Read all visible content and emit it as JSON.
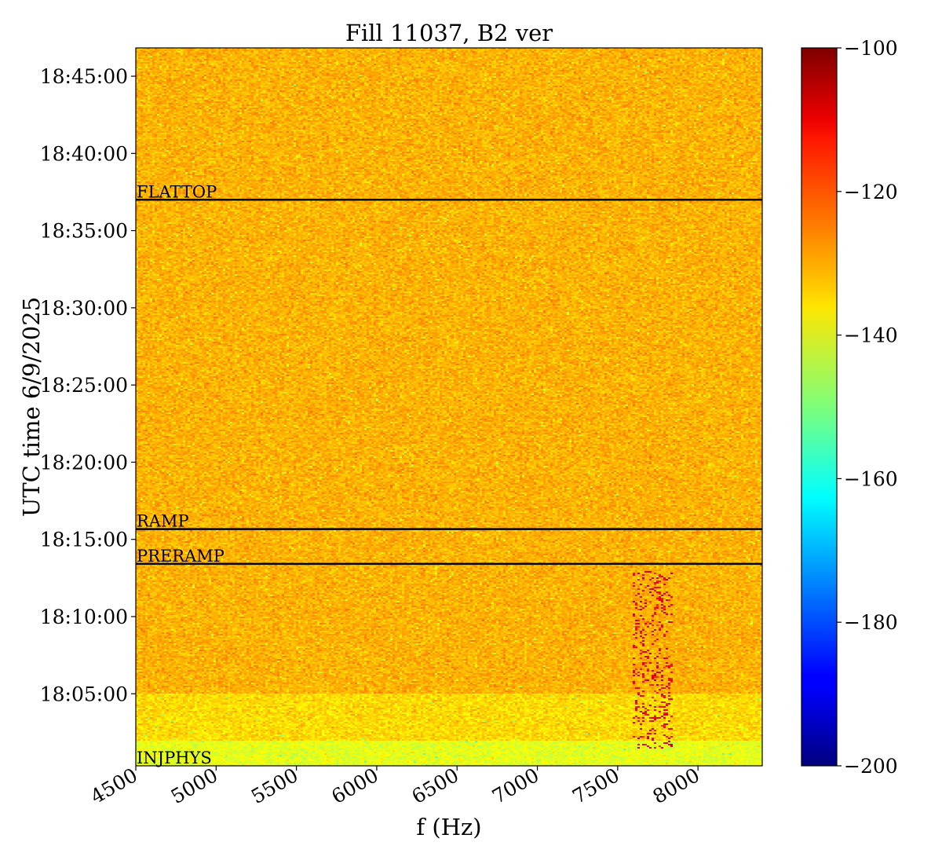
{
  "chart_data": {
    "type": "heatmap",
    "title": "Fill 11037, B2 ver",
    "xlabel": "f (Hz)",
    "ylabel": "UTC time 6/9/2025",
    "xlim": [
      4500,
      8400
    ],
    "x_ticks": [
      4500,
      5000,
      5500,
      6000,
      6500,
      7000,
      7500,
      8000
    ],
    "y_ticks": [
      "18:05:00",
      "18:10:00",
      "18:15:00",
      "18:20:00",
      "18:25:00",
      "18:30:00",
      "18:35:00",
      "18:40:00",
      "18:45:00"
    ],
    "ylim": [
      "18:00:20",
      "18:46:50"
    ],
    "colormap": "jet",
    "colorbar": {
      "min": -200,
      "max": -100,
      "ticks": [
        -100,
        -120,
        -140,
        -160,
        -180,
        -200
      ],
      "tick_labels": [
        "−100",
        "−120",
        "−140",
        "−160",
        "−180",
        "−200"
      ]
    },
    "typical_level": -130,
    "early_low_level": -140,
    "hotspot": {
      "freq_range": [
        7600,
        7850
      ],
      "time_range": [
        "18:01:30",
        "18:13:00"
      ],
      "level": -112
    },
    "phase_markers": [
      {
        "label": "FLATTOP",
        "time": "18:37:00"
      },
      {
        "label": "RAMP",
        "time": "18:15:40"
      },
      {
        "label": "PRERAMP",
        "time": "18:13:25"
      },
      {
        "label": "INJPHYS",
        "time": "18:00:20"
      }
    ],
    "grid": false,
    "legend": "none"
  }
}
